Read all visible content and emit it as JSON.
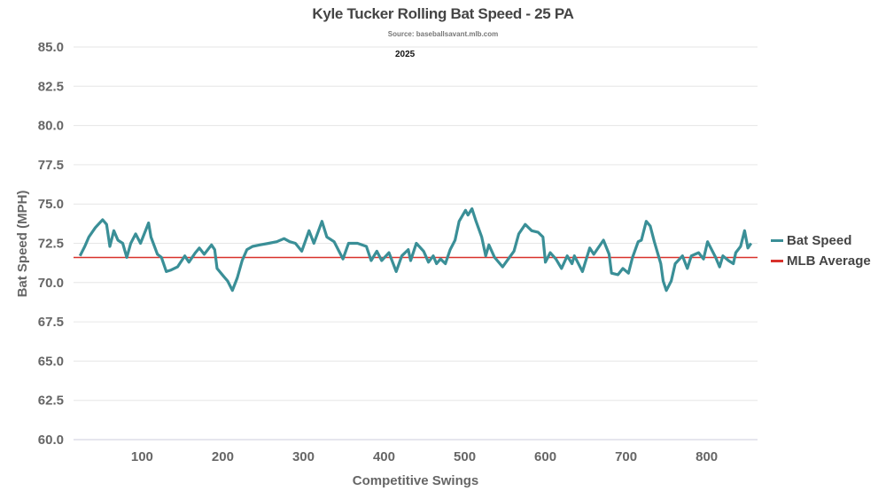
{
  "chart_data": {
    "type": "line",
    "title": "Kyle Tucker Rolling Bat Speed - 25 PA",
    "subtitle": "Source: baseballsavant.mlb.com",
    "annotation": "2025",
    "xlabel": "Competitive Swings",
    "ylabel": "Bat Speed (MPH)",
    "xlim": [
      15,
      863
    ],
    "ylim": [
      60,
      85
    ],
    "x_ticks": [
      "100",
      "200",
      "300",
      "400",
      "500",
      "600",
      "700",
      "800"
    ],
    "y_ticks": [
      "60.0",
      "62.5",
      "65.0",
      "67.5",
      "70.0",
      "72.5",
      "75.0",
      "77.5",
      "80.0",
      "82.5",
      "85.0"
    ],
    "grid": true,
    "legend_position": "right",
    "colors": {
      "bat_speed": "#3a8f97",
      "mlb_average": "#d8322c"
    },
    "mlb_average": 71.6,
    "series": [
      {
        "name": "Bat Speed",
        "x": [
          23,
          29,
          34,
          42,
          51,
          56,
          60,
          65,
          70,
          76,
          81,
          86,
          92,
          98,
          108,
          111,
          119,
          124,
          130,
          136,
          144,
          153,
          158,
          166,
          171,
          177,
          186,
          190,
          193,
          201,
          206,
          212,
          218,
          224,
          230,
          237,
          246,
          257,
          267,
          276,
          283,
          290,
          298,
          307,
          313,
          323,
          329,
          338,
          349,
          356,
          367,
          378,
          384,
          391,
          397,
          406,
          415,
          422,
          430,
          433,
          440,
          449,
          455,
          461,
          465,
          470,
          476,
          482,
          488,
          493,
          501,
          504,
          509,
          514,
          521,
          526,
          530,
          537,
          547,
          554,
          561,
          567,
          575,
          583,
          591,
          597,
          600,
          606,
          613,
          620,
          627,
          633,
          636,
          646,
          655,
          660,
          672,
          679,
          682,
          690,
          696,
          703,
          708,
          715,
          719,
          725,
          730,
          735,
          743,
          746,
          750,
          756,
          761,
          770,
          776,
          781,
          790,
          796,
          801,
          811,
          816,
          820,
          827,
          833,
          836,
          842,
          847,
          851,
          855
        ],
        "values": [
          71.7,
          72.3,
          72.9,
          73.5,
          74.0,
          73.7,
          72.3,
          73.3,
          72.7,
          72.5,
          71.6,
          72.5,
          73.1,
          72.5,
          73.8,
          72.9,
          71.8,
          71.6,
          70.7,
          70.8,
          71.0,
          71.7,
          71.3,
          71.9,
          72.2,
          71.8,
          72.4,
          72.1,
          70.9,
          70.4,
          70.1,
          69.5,
          70.3,
          71.4,
          72.1,
          72.3,
          72.4,
          72.5,
          72.6,
          72.8,
          72.6,
          72.5,
          72.0,
          73.3,
          72.5,
          73.9,
          72.9,
          72.6,
          71.5,
          72.5,
          72.5,
          72.3,
          71.4,
          72.0,
          71.4,
          71.9,
          70.7,
          71.7,
          72.1,
          71.4,
          72.5,
          72.0,
          71.3,
          71.7,
          71.2,
          71.5,
          71.2,
          72.1,
          72.7,
          73.9,
          74.6,
          74.3,
          74.7,
          73.9,
          72.9,
          71.7,
          72.4,
          71.6,
          71.0,
          71.5,
          72.0,
          73.1,
          73.7,
          73.3,
          73.2,
          72.9,
          71.3,
          71.9,
          71.5,
          70.9,
          71.7,
          71.2,
          71.7,
          70.7,
          72.2,
          71.8,
          72.7,
          71.8,
          70.6,
          70.5,
          70.9,
          70.6,
          71.6,
          72.6,
          72.7,
          73.9,
          73.6,
          72.6,
          71.2,
          70.1,
          69.5,
          70.1,
          71.2,
          71.7,
          70.9,
          71.7,
          71.9,
          71.5,
          72.6,
          71.6,
          71.0,
          71.7,
          71.4,
          71.2,
          71.9,
          72.3,
          73.3,
          72.2,
          72.5
        ]
      },
      {
        "name": "MLB Average"
      }
    ]
  }
}
